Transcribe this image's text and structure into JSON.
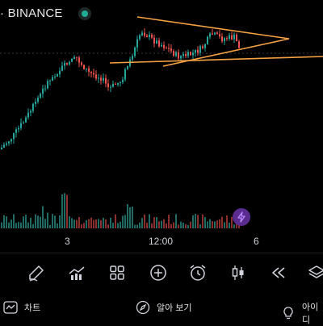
{
  "header": {
    "symbol_text": "· BINANCE",
    "status_color": "#22ab94"
  },
  "time_axis": {
    "labels": [
      "3",
      "12:00",
      "6"
    ]
  },
  "chart_data": {
    "type": "candlestick",
    "trendline_color": "#f6a243",
    "up_color": "#26a69a",
    "down_color": "#ef5350",
    "volume_up_color": "#1f6b63",
    "volume_down_color": "#8b2f2d"
  },
  "toolbar": {
    "items": [
      {
        "name": "draw-tool-icon"
      },
      {
        "name": "indicators-icon"
      },
      {
        "name": "layouts-icon"
      },
      {
        "name": "add-icon"
      },
      {
        "name": "alert-clock-icon"
      },
      {
        "name": "chart-type-candles-icon"
      },
      {
        "name": "replay-rewind-icon"
      },
      {
        "name": "object-tree-icon"
      }
    ]
  },
  "bottom_bar": {
    "chart_label": "차트",
    "explore_label": "알아 보기",
    "ideas_label": "아이디"
  }
}
